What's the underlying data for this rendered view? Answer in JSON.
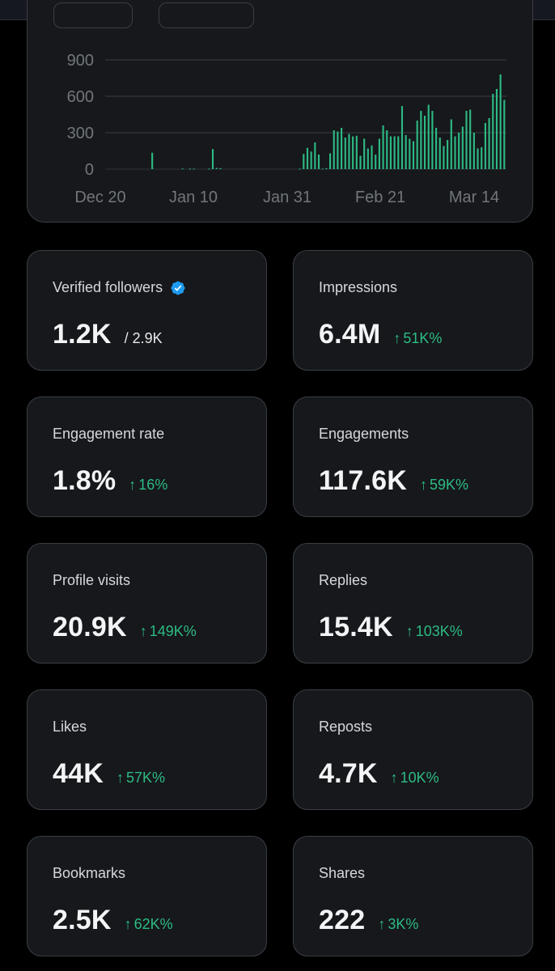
{
  "colors": {
    "background": "#000000",
    "card": "#16181c",
    "border": "#3a3f44",
    "bar": "#2dbb83",
    "positive": "#2dbb83",
    "verified": "#1d9bf0"
  },
  "chart_data": {
    "type": "bar",
    "y_ticks": [
      "900",
      "600",
      "300",
      "0"
    ],
    "x_ticks": [
      "Dec 20",
      "Jan 10",
      "Jan 31",
      "Feb 21",
      "Mar 14"
    ],
    "ylim": [
      0,
      900
    ],
    "grid": true,
    "values": [
      0,
      0,
      0,
      0,
      0,
      0,
      0,
      0,
      0,
      0,
      0,
      0,
      135,
      0,
      0,
      0,
      0,
      0,
      0,
      0,
      5,
      0,
      4,
      4,
      0,
      0,
      0,
      4,
      165,
      10,
      8,
      0,
      0,
      0,
      0,
      0,
      0,
      0,
      0,
      0,
      0,
      0,
      0,
      0,
      0,
      0,
      0,
      0,
      0,
      0,
      0,
      4,
      125,
      175,
      145,
      220,
      120,
      4,
      8,
      130,
      320,
      310,
      340,
      260,
      290,
      270,
      275,
      110,
      250,
      170,
      195,
      120,
      250,
      360,
      320,
      270,
      270,
      270,
      520,
      280,
      250,
      230,
      400,
      480,
      440,
      530,
      480,
      340,
      260,
      190,
      240,
      410,
      270,
      300,
      350,
      480,
      490,
      300,
      170,
      180,
      380,
      420,
      620,
      660,
      780,
      570
    ]
  },
  "metrics": [
    {
      "label": "Verified followers",
      "value": "1.2K",
      "total": "/ 2.9K",
      "verified": true
    },
    {
      "label": "Impressions",
      "value": "6.4M",
      "change": "51K%"
    },
    {
      "label": "Engagement rate",
      "value": "1.8%",
      "change": "16%"
    },
    {
      "label": "Engagements",
      "value": "117.6K",
      "change": "59K%"
    },
    {
      "label": "Profile visits",
      "value": "20.9K",
      "change": "149K%"
    },
    {
      "label": "Replies",
      "value": "15.4K",
      "change": "103K%"
    },
    {
      "label": "Likes",
      "value": "44K",
      "change": "57K%"
    },
    {
      "label": "Reposts",
      "value": "4.7K",
      "change": "10K%"
    },
    {
      "label": "Bookmarks",
      "value": "2.5K",
      "change": "62K%"
    },
    {
      "label": "Shares",
      "value": "222",
      "change": "3K%"
    }
  ],
  "icons": {
    "verified": "verified-badge-icon",
    "trend": "arrow-up-icon",
    "arrow_glyph": "↑"
  }
}
